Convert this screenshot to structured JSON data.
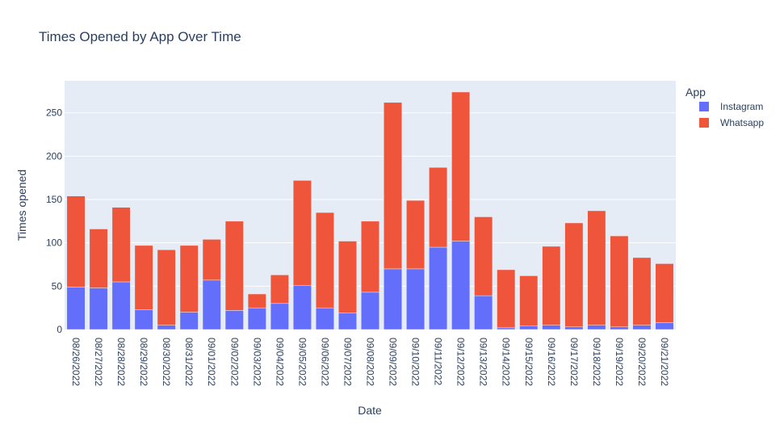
{
  "chart_data": {
    "type": "bar",
    "barmode": "stack",
    "title": "Times Opened by App Over Time",
    "xlabel": "Date",
    "ylabel": "Times opened",
    "ylim": [
      0,
      287
    ],
    "yticks": [
      0,
      50,
      100,
      150,
      200,
      250
    ],
    "grid": true,
    "legend_title": "App",
    "legend_position": "top-right",
    "categories": [
      "08/26/2022",
      "08/27/2022",
      "08/28/2022",
      "08/29/2022",
      "08/30/2022",
      "08/31/2022",
      "09/01/2022",
      "09/02/2022",
      "09/03/2022",
      "09/04/2022",
      "09/05/2022",
      "09/06/2022",
      "09/07/2022",
      "09/08/2022",
      "09/09/2022",
      "09/10/2022",
      "09/11/2022",
      "09/12/2022",
      "09/13/2022",
      "09/14/2022",
      "09/15/2022",
      "09/16/2022",
      "09/17/2022",
      "09/18/2022",
      "09/19/2022",
      "09/20/2022",
      "09/21/2022"
    ],
    "series": [
      {
        "name": "Instagram",
        "color": "#636efa",
        "values": [
          49,
          48,
          55,
          23,
          5,
          20,
          57,
          22,
          25,
          30,
          51,
          25,
          19,
          43,
          70,
          70,
          95,
          102,
          39,
          2,
          4,
          5,
          3,
          5,
          3,
          5,
          8
        ]
      },
      {
        "name": "Whatsapp",
        "color": "#ef553b",
        "values": [
          105,
          68,
          86,
          74,
          87,
          77,
          47,
          103,
          16,
          33,
          121,
          110,
          83,
          82,
          192,
          79,
          92,
          172,
          91,
          67,
          58,
          91,
          120,
          132,
          105,
          78,
          68
        ]
      }
    ]
  }
}
